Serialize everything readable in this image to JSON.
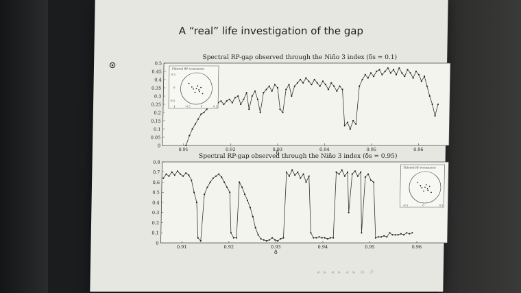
{
  "slide": {
    "title": "A “real” life investigation of the gap",
    "footer_nav": "◂ ▸ ◂ ▸ ◂ ▸ ≡ ↺"
  },
  "chart_data": [
    {
      "type": "line",
      "title": "Spectral RP-gap observed through the Niño 3 index (δs = 0.1)",
      "xlabel": "δ",
      "xlim": [
        0.9055,
        0.9665
      ],
      "ylim": [
        0,
        0.5
      ],
      "x_ticks": [
        0.91,
        0.92,
        0.93,
        0.94,
        0.95,
        0.96
      ],
      "x_tick_labels": [
        "0.91",
        "0.92",
        "0.93",
        "0.94",
        "0.95",
        "0.96"
      ],
      "y_ticks": [
        0,
        0.05,
        0.1,
        0.15,
        0.2,
        0.25,
        0.3,
        0.35,
        0.4,
        0.45,
        0.5
      ],
      "y_tick_labels": [
        "0",
        "0.05",
        "0.1",
        "0.15",
        "0.2",
        "0.25",
        "0.3",
        "0.35",
        "0.4",
        "0.45",
        "0.5"
      ],
      "series": [
        {
          "points": [
            [
              0.9105,
              0.0
            ],
            [
              0.9112,
              0.06
            ],
            [
              0.9118,
              0.1
            ],
            [
              0.9124,
              0.13
            ],
            [
              0.913,
              0.16
            ],
            [
              0.9136,
              0.19
            ],
            [
              0.9142,
              0.2
            ],
            [
              0.9148,
              0.22
            ],
            [
              0.9154,
              0.24
            ],
            [
              0.916,
              0.25
            ],
            [
              0.9166,
              0.24
            ],
            [
              0.9172,
              0.26
            ],
            [
              0.9178,
              0.27
            ],
            [
              0.9184,
              0.25
            ],
            [
              0.919,
              0.27
            ],
            [
              0.9196,
              0.28
            ],
            [
              0.9202,
              0.26
            ],
            [
              0.9208,
              0.29
            ],
            [
              0.9214,
              0.3
            ],
            [
              0.922,
              0.25
            ],
            [
              0.9226,
              0.28
            ],
            [
              0.9232,
              0.32
            ],
            [
              0.9238,
              0.22
            ],
            [
              0.9244,
              0.3
            ],
            [
              0.925,
              0.33
            ],
            [
              0.9256,
              0.28
            ],
            [
              0.9262,
              0.2
            ],
            [
              0.9268,
              0.32
            ],
            [
              0.9274,
              0.34
            ],
            [
              0.928,
              0.36
            ],
            [
              0.9286,
              0.33
            ],
            [
              0.9292,
              0.37
            ],
            [
              0.9298,
              0.35
            ],
            [
              0.9304,
              0.22
            ],
            [
              0.931,
              0.2
            ],
            [
              0.9316,
              0.34
            ],
            [
              0.9322,
              0.37
            ],
            [
              0.9328,
              0.3
            ],
            [
              0.9334,
              0.36
            ],
            [
              0.934,
              0.38
            ],
            [
              0.9346,
              0.4
            ],
            [
              0.9352,
              0.38
            ],
            [
              0.9358,
              0.41
            ],
            [
              0.9364,
              0.39
            ],
            [
              0.937,
              0.37
            ],
            [
              0.9376,
              0.4
            ],
            [
              0.9382,
              0.38
            ],
            [
              0.9388,
              0.36
            ],
            [
              0.9394,
              0.39
            ],
            [
              0.94,
              0.37
            ],
            [
              0.9406,
              0.34
            ],
            [
              0.9412,
              0.38
            ],
            [
              0.9418,
              0.36
            ],
            [
              0.9424,
              0.33
            ],
            [
              0.943,
              0.36
            ],
            [
              0.9436,
              0.34
            ],
            [
              0.9442,
              0.12
            ],
            [
              0.9448,
              0.14
            ],
            [
              0.9454,
              0.1
            ],
            [
              0.946,
              0.15
            ],
            [
              0.9466,
              0.13
            ],
            [
              0.9472,
              0.36
            ],
            [
              0.9478,
              0.4
            ],
            [
              0.9484,
              0.43
            ],
            [
              0.949,
              0.41
            ],
            [
              0.9496,
              0.44
            ],
            [
              0.9502,
              0.42
            ],
            [
              0.9508,
              0.45
            ],
            [
              0.9514,
              0.46
            ],
            [
              0.952,
              0.43
            ],
            [
              0.9526,
              0.45
            ],
            [
              0.9532,
              0.47
            ],
            [
              0.9538,
              0.44
            ],
            [
              0.9544,
              0.46
            ],
            [
              0.955,
              0.43
            ],
            [
              0.9556,
              0.47
            ],
            [
              0.9562,
              0.44
            ],
            [
              0.9568,
              0.42
            ],
            [
              0.9574,
              0.46
            ],
            [
              0.958,
              0.44
            ],
            [
              0.9586,
              0.41
            ],
            [
              0.9592,
              0.45
            ],
            [
              0.9598,
              0.43
            ],
            [
              0.9604,
              0.39
            ],
            [
              0.961,
              0.42
            ],
            [
              0.9616,
              0.36
            ],
            [
              0.9622,
              0.3
            ],
            [
              0.9628,
              0.25
            ],
            [
              0.9634,
              0.18
            ],
            [
              0.964,
              0.25
            ]
          ]
        }
      ],
      "inset": {
        "title": "Filtered RP resonances",
        "position": "top-left",
        "x_tick_labels": [
          "-1",
          "-0.5",
          "0",
          "0.5"
        ],
        "y_tick_labels": [
          "0.5",
          "0",
          "-0.5"
        ]
      }
    },
    {
      "type": "line",
      "title": "Spectral RP-gap observed through the Niño 3 index (δs = 0.95)",
      "xlabel": "δ",
      "xlim": [
        0.9055,
        0.9665
      ],
      "ylim": [
        0,
        0.8
      ],
      "x_ticks": [
        0.91,
        0.92,
        0.93,
        0.94,
        0.95,
        0.96
      ],
      "x_tick_labels": [
        "0.91",
        "0.92",
        "0.93",
        "0.94",
        "0.95",
        "0.96"
      ],
      "y_ticks": [
        0,
        0.1,
        0.2,
        0.3,
        0.4,
        0.5,
        0.6,
        0.7,
        0.8
      ],
      "y_tick_labels": [
        "0",
        "0.1",
        "0.2",
        "0.3",
        "0.4",
        "0.5",
        "0.6",
        "0.7",
        "0.8"
      ],
      "series": [
        {
          "points": [
            [
              0.9058,
              0.64
            ],
            [
              0.9064,
              0.68
            ],
            [
              0.907,
              0.66
            ],
            [
              0.9076,
              0.7
            ],
            [
              0.9082,
              0.67
            ],
            [
              0.9088,
              0.71
            ],
            [
              0.9094,
              0.68
            ],
            [
              0.91,
              0.66
            ],
            [
              0.9106,
              0.69
            ],
            [
              0.9112,
              0.67
            ],
            [
              0.9118,
              0.62
            ],
            [
              0.9124,
              0.5
            ],
            [
              0.913,
              0.4
            ],
            [
              0.9134,
              0.05
            ],
            [
              0.914,
              0.02
            ],
            [
              0.9146,
              0.48
            ],
            [
              0.9152,
              0.55
            ],
            [
              0.9158,
              0.6
            ],
            [
              0.9164,
              0.64
            ],
            [
              0.917,
              0.66
            ],
            [
              0.9176,
              0.68
            ],
            [
              0.9182,
              0.65
            ],
            [
              0.9188,
              0.6
            ],
            [
              0.9194,
              0.55
            ],
            [
              0.92,
              0.5
            ],
            [
              0.9204,
              0.1
            ],
            [
              0.921,
              0.05
            ],
            [
              0.9216,
              0.05
            ],
            [
              0.922,
              0.6
            ],
            [
              0.9226,
              0.55
            ],
            [
              0.9232,
              0.48
            ],
            [
              0.9238,
              0.42
            ],
            [
              0.9244,
              0.35
            ],
            [
              0.925,
              0.26
            ],
            [
              0.9256,
              0.15
            ],
            [
              0.9262,
              0.08
            ],
            [
              0.9268,
              0.04
            ],
            [
              0.9274,
              0.03
            ],
            [
              0.928,
              0.02
            ],
            [
              0.9286,
              0.03
            ],
            [
              0.9292,
              0.05
            ],
            [
              0.9298,
              0.03
            ],
            [
              0.9304,
              0.02
            ],
            [
              0.931,
              0.04
            ],
            [
              0.9316,
              0.05
            ],
            [
              0.932,
              0.7
            ],
            [
              0.9326,
              0.66
            ],
            [
              0.9332,
              0.72
            ],
            [
              0.9338,
              0.67
            ],
            [
              0.9344,
              0.7
            ],
            [
              0.935,
              0.64
            ],
            [
              0.9356,
              0.68
            ],
            [
              0.9362,
              0.6
            ],
            [
              0.9368,
              0.66
            ],
            [
              0.9374,
              0.1
            ],
            [
              0.938,
              0.05
            ],
            [
              0.9386,
              0.05
            ],
            [
              0.9392,
              0.06
            ],
            [
              0.9398,
              0.05
            ],
            [
              0.9404,
              0.05
            ],
            [
              0.941,
              0.04
            ],
            [
              0.9416,
              0.05
            ],
            [
              0.9422,
              0.05
            ],
            [
              0.9426,
              0.7
            ],
            [
              0.9432,
              0.68
            ],
            [
              0.9438,
              0.72
            ],
            [
              0.9444,
              0.66
            ],
            [
              0.945,
              0.7
            ],
            [
              0.9454,
              0.3
            ],
            [
              0.946,
              0.68
            ],
            [
              0.9466,
              0.71
            ],
            [
              0.9472,
              0.66
            ],
            [
              0.9478,
              0.7
            ],
            [
              0.9482,
              0.1
            ],
            [
              0.9488,
              0.65
            ],
            [
              0.9494,
              0.68
            ],
            [
              0.95,
              0.62
            ],
            [
              0.9506,
              0.6
            ],
            [
              0.9512,
              0.05
            ],
            [
              0.9518,
              0.06
            ],
            [
              0.9524,
              0.06
            ],
            [
              0.953,
              0.07
            ],
            [
              0.9536,
              0.06
            ],
            [
              0.9542,
              0.1
            ],
            [
              0.9548,
              0.08
            ],
            [
              0.9554,
              0.08
            ],
            [
              0.956,
              0.08
            ],
            [
              0.9566,
              0.09
            ],
            [
              0.9572,
              0.08
            ],
            [
              0.9578,
              0.1
            ],
            [
              0.9584,
              0.09
            ],
            [
              0.959,
              0.1
            ]
          ]
        }
      ],
      "inset": {
        "title": "Filtered RP resonances",
        "position": "top-right",
        "x_tick_labels": [
          "-0.5",
          "0",
          "0.5"
        ]
      }
    }
  ]
}
